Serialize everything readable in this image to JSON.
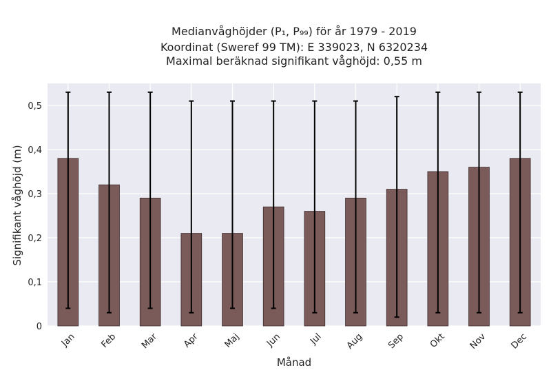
{
  "chart_data": {
    "type": "bar",
    "title_lines": [
      "Medianvåghöjder (P₁, P₉₉) för år 1979 - 2019",
      "Koordinat (Sweref 99 TM): E 339023, N 6320234",
      "Maximal beräknad signifikant våghöjd: 0,55 m"
    ],
    "xlabel": "Månad",
    "ylabel": "Signifikant våghöjd (m)",
    "categories": [
      "Jan",
      "Feb",
      "Mar",
      "Apr",
      "Maj",
      "Jun",
      "Jul",
      "Aug",
      "Sep",
      "Okt",
      "Nov",
      "Dec"
    ],
    "values": [
      0.38,
      0.32,
      0.29,
      0.21,
      0.21,
      0.27,
      0.26,
      0.29,
      0.31,
      0.35,
      0.36,
      0.38
    ],
    "p1": [
      0.04,
      0.03,
      0.04,
      0.03,
      0.04,
      0.04,
      0.03,
      0.03,
      0.02,
      0.03,
      0.03,
      0.03
    ],
    "p99": [
      0.53,
      0.53,
      0.53,
      0.51,
      0.51,
      0.51,
      0.51,
      0.51,
      0.52,
      0.53,
      0.53,
      0.53
    ],
    "yticks": [
      "0",
      "0,1",
      "0,2",
      "0,3",
      "0,4",
      "0,5"
    ],
    "ytick_values": [
      0,
      0.1,
      0.2,
      0.3,
      0.4,
      0.5
    ],
    "ylim": [
      0,
      0.55
    ],
    "grid": true,
    "colors": {
      "bar": "#7b5a5a",
      "bar_edge": "#3a2a2a",
      "background": "#eaeaf2",
      "grid": "#ffffff",
      "errorbar": "#000000"
    }
  }
}
